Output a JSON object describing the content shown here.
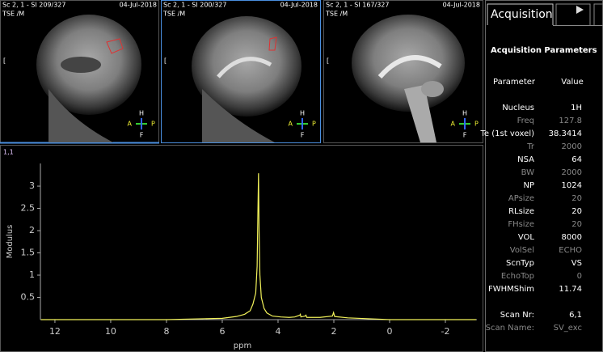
{
  "panels": [
    {
      "header_left": "Sc 2, 1 - SI 209/327",
      "header_right": "04-Jul-2018",
      "sub": "TSE  /M",
      "side": "[",
      "orient": {
        "top": "H",
        "left": "A",
        "right": "P",
        "bottom": "F"
      }
    },
    {
      "header_left": "Sc 2, 1 - SI 200/327",
      "header_right": "04-Jul-2018",
      "sub": "TSE  /M",
      "side": "[",
      "orient": {
        "top": "H",
        "left": "A",
        "right": "P",
        "bottom": "F"
      }
    },
    {
      "header_left": "Sc 2, 1 - SI 167/327",
      "header_right": "04-Jul-2018",
      "sub": "TSE  /M",
      "side": "[",
      "orient": {
        "top": "H",
        "left": "A",
        "right": "P",
        "bottom": "F"
      }
    }
  ],
  "plot_label": "1,1",
  "chart_data": {
    "type": "line",
    "x_label": "ppm",
    "y_label": "Modulus",
    "color": "#f2f25a",
    "x": [
      12.5,
      8,
      6,
      5.5,
      5.2,
      5.0,
      4.9,
      4.8,
      4.75,
      4.72,
      4.7,
      4.68,
      4.65,
      4.6,
      4.5,
      4.4,
      4.2,
      3.9,
      3.6,
      3.4,
      3.22,
      3.2,
      3.18,
      3.03,
      3.0,
      2.97,
      2.5,
      2.05,
      2.01,
      1.97,
      1.5,
      0,
      -3.1
    ],
    "values": [
      0,
      0,
      0.03,
      0.07,
      0.12,
      0.2,
      0.35,
      0.6,
      1.2,
      2.5,
      3.29,
      2.0,
      1.0,
      0.5,
      0.25,
      0.15,
      0.08,
      0.06,
      0.05,
      0.06,
      0.1,
      0.12,
      0.06,
      0.08,
      0.1,
      0.05,
      0.05,
      0.08,
      0.16,
      0.07,
      0.04,
      0.0,
      0.0
    ],
    "xlim": [
      12.52,
      -3.13
    ],
    "ylim": [
      0,
      3.51
    ],
    "xticks": [
      12,
      10,
      8,
      6,
      4,
      2,
      0,
      -2
    ],
    "yticks": [
      0.5,
      1,
      1.5,
      2,
      2.5,
      3
    ]
  },
  "sidebar": {
    "tab": "Acquisition",
    "title": "Acquisition Parameters",
    "col_param": "Parameter",
    "col_value": "Value",
    "rows": [
      {
        "label": "Nucleus",
        "value": "1H",
        "dim": false
      },
      {
        "label": "Freq",
        "value": "127.8",
        "dim": true
      },
      {
        "label": "Te (1st voxel)",
        "value": "38.3414",
        "dim": false
      },
      {
        "label": "Tr",
        "value": "2000",
        "dim": true
      },
      {
        "label": "NSA",
        "value": "64",
        "dim": false
      },
      {
        "label": "BW",
        "value": "2000",
        "dim": true
      },
      {
        "label": "NP",
        "value": "1024",
        "dim": false
      },
      {
        "label": "APsize",
        "value": "20",
        "dim": true
      },
      {
        "label": "RLsize",
        "value": "20",
        "dim": false
      },
      {
        "label": "FHsize",
        "value": "20",
        "dim": true
      },
      {
        "label": "VOL",
        "value": "8000",
        "dim": false
      },
      {
        "label": "VolSel",
        "value": "ECHO",
        "dim": true
      },
      {
        "label": "ScnTyp",
        "value": "VS",
        "dim": false
      },
      {
        "label": "EchoTop",
        "value": "0",
        "dim": true
      },
      {
        "label": "FWHMShim",
        "value": "11.74",
        "dim": false
      }
    ],
    "scan_rows": [
      {
        "label": "Scan Nr:",
        "value": "6,1",
        "dim": false
      },
      {
        "label": "Scan Name:",
        "value": "SV_exc",
        "dim": true
      }
    ]
  }
}
